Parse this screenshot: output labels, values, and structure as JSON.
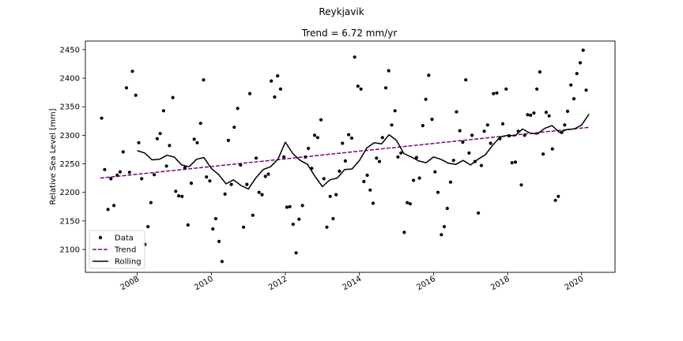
{
  "chart_data": {
    "type": "scatter",
    "title": "Reykjavik",
    "subtitle": "Trend = 6.72 mm/yr",
    "xlabel": "",
    "ylabel": "Relative Sea Level [mm]",
    "xlim": [
      2006.6,
      2020.9
    ],
    "ylim": [
      2060,
      2465
    ],
    "x_ticks": [
      "2008",
      "2010",
      "2012",
      "2014",
      "2016",
      "2018",
      "2020"
    ],
    "y_ticks": [
      "2100",
      "2150",
      "2200",
      "2250",
      "2300",
      "2350",
      "2400",
      "2450"
    ],
    "grid": false,
    "legend_position": "lower-left",
    "colors": {
      "data": "#000000",
      "trend": "#800080",
      "rolling": "#000000"
    },
    "series": [
      {
        "name": "Data",
        "style": "points",
        "points": [
          [
            2007.04,
            2330
          ],
          [
            2007.12,
            2240
          ],
          [
            2007.21,
            2170
          ],
          [
            2007.29,
            2224
          ],
          [
            2007.37,
            2177
          ],
          [
            2007.46,
            2230
          ],
          [
            2007.54,
            2236
          ],
          [
            2007.62,
            2271
          ],
          [
            2007.71,
            2383
          ],
          [
            2007.79,
            2235
          ],
          [
            2007.87,
            2412
          ],
          [
            2007.96,
            2370
          ],
          [
            2008.04,
            2287
          ],
          [
            2008.12,
            2224
          ],
          [
            2008.21,
            2109
          ],
          [
            2008.29,
            2140
          ],
          [
            2008.37,
            2182
          ],
          [
            2008.46,
            2231
          ],
          [
            2008.54,
            2294
          ],
          [
            2008.62,
            2303
          ],
          [
            2008.71,
            2343
          ],
          [
            2008.79,
            2246
          ],
          [
            2008.87,
            2282
          ],
          [
            2008.96,
            2366
          ],
          [
            2009.04,
            2202
          ],
          [
            2009.12,
            2194
          ],
          [
            2009.21,
            2193
          ],
          [
            2009.29,
            2243
          ],
          [
            2009.37,
            2143
          ],
          [
            2009.46,
            2216
          ],
          [
            2009.54,
            2293
          ],
          [
            2009.62,
            2287
          ],
          [
            2009.71,
            2321
          ],
          [
            2009.79,
            2397
          ],
          [
            2009.87,
            2227
          ],
          [
            2009.96,
            2220
          ],
          [
            2010.04,
            2136
          ],
          [
            2010.12,
            2154
          ],
          [
            2010.21,
            2114
          ],
          [
            2010.29,
            2079
          ],
          [
            2010.37,
            2197
          ],
          [
            2010.46,
            2291
          ],
          [
            2010.54,
            2214
          ],
          [
            2010.62,
            2314
          ],
          [
            2010.71,
            2347
          ],
          [
            2010.79,
            2248
          ],
          [
            2010.87,
            2139
          ],
          [
            2010.96,
            2214
          ],
          [
            2011.04,
            2373
          ],
          [
            2011.12,
            2160
          ],
          [
            2011.21,
            2260
          ],
          [
            2011.29,
            2200
          ],
          [
            2011.37,
            2196
          ],
          [
            2011.46,
            2228
          ],
          [
            2011.54,
            2232
          ],
          [
            2011.62,
            2395
          ],
          [
            2011.71,
            2367
          ],
          [
            2011.79,
            2404
          ],
          [
            2011.87,
            2381
          ],
          [
            2011.96,
            2262
          ],
          [
            2012.04,
            2174
          ],
          [
            2012.12,
            2175
          ],
          [
            2012.21,
            2144
          ],
          [
            2012.29,
            2094
          ],
          [
            2012.37,
            2153
          ],
          [
            2012.46,
            2177
          ],
          [
            2012.54,
            2262
          ],
          [
            2012.62,
            2277
          ],
          [
            2012.71,
            2242
          ],
          [
            2012.79,
            2300
          ],
          [
            2012.87,
            2296
          ],
          [
            2012.96,
            2327
          ],
          [
            2013.04,
            2224
          ],
          [
            2013.12,
            2139
          ],
          [
            2013.21,
            2193
          ],
          [
            2013.29,
            2154
          ],
          [
            2013.37,
            2196
          ],
          [
            2013.46,
            2237
          ],
          [
            2013.54,
            2286
          ],
          [
            2013.62,
            2255
          ],
          [
            2013.71,
            2301
          ],
          [
            2013.79,
            2295
          ],
          [
            2013.87,
            2437
          ],
          [
            2013.96,
            2386
          ],
          [
            2014.04,
            2381
          ],
          [
            2014.12,
            2219
          ],
          [
            2014.21,
            2230
          ],
          [
            2014.29,
            2204
          ],
          [
            2014.37,
            2181
          ],
          [
            2014.46,
            2260
          ],
          [
            2014.54,
            2254
          ],
          [
            2014.62,
            2296
          ],
          [
            2014.71,
            2383
          ],
          [
            2014.79,
            2413
          ],
          [
            2014.87,
            2318
          ],
          [
            2014.96,
            2343
          ],
          [
            2015.04,
            2262
          ],
          [
            2015.12,
            2269
          ],
          [
            2015.21,
            2130
          ],
          [
            2015.29,
            2182
          ],
          [
            2015.37,
            2180
          ],
          [
            2015.46,
            2221
          ],
          [
            2015.54,
            2261
          ],
          [
            2015.62,
            2225
          ],
          [
            2015.71,
            2317
          ],
          [
            2015.79,
            2363
          ],
          [
            2015.87,
            2405
          ],
          [
            2015.96,
            2328
          ],
          [
            2016.04,
            2236
          ],
          [
            2016.12,
            2200
          ],
          [
            2016.21,
            2126
          ],
          [
            2016.29,
            2140
          ],
          [
            2016.37,
            2172
          ],
          [
            2016.46,
            2218
          ],
          [
            2016.54,
            2256
          ],
          [
            2016.62,
            2341
          ],
          [
            2016.71,
            2308
          ],
          [
            2016.79,
            2288
          ],
          [
            2016.87,
            2397
          ],
          [
            2016.96,
            2269
          ],
          [
            2017.04,
            2300
          ],
          [
            2017.12,
            2254
          ],
          [
            2017.21,
            2164
          ],
          [
            2017.29,
            2247
          ],
          [
            2017.37,
            2307
          ],
          [
            2017.46,
            2318
          ],
          [
            2017.54,
            2286
          ],
          [
            2017.62,
            2373
          ],
          [
            2017.71,
            2374
          ],
          [
            2017.79,
            2294
          ],
          [
            2017.87,
            2320
          ],
          [
            2017.96,
            2381
          ],
          [
            2018.04,
            2299
          ],
          [
            2018.12,
            2252
          ],
          [
            2018.21,
            2253
          ],
          [
            2018.29,
            2307
          ],
          [
            2018.37,
            2213
          ],
          [
            2018.46,
            2300
          ],
          [
            2018.54,
            2336
          ],
          [
            2018.62,
            2335
          ],
          [
            2018.71,
            2339
          ],
          [
            2018.79,
            2381
          ],
          [
            2018.87,
            2411
          ],
          [
            2018.96,
            2267
          ],
          [
            2019.04,
            2340
          ],
          [
            2019.12,
            2334
          ],
          [
            2019.21,
            2276
          ],
          [
            2019.29,
            2186
          ],
          [
            2019.37,
            2193
          ],
          [
            2019.46,
            2305
          ],
          [
            2019.54,
            2318
          ],
          [
            2019.62,
            2342
          ],
          [
            2019.71,
            2388
          ],
          [
            2019.79,
            2364
          ],
          [
            2019.87,
            2408
          ],
          [
            2019.96,
            2427
          ],
          [
            2020.04,
            2449
          ],
          [
            2020.12,
            2379
          ]
        ]
      },
      {
        "name": "Trend",
        "style": "dashed",
        "points": [
          [
            2007.0,
            2225
          ],
          [
            2020.2,
            2314
          ]
        ]
      },
      {
        "name": "Rolling",
        "style": "line",
        "points": [
          [
            2008.0,
            2273
          ],
          [
            2008.2,
            2269
          ],
          [
            2008.4,
            2257
          ],
          [
            2008.6,
            2258
          ],
          [
            2008.8,
            2265
          ],
          [
            2009.0,
            2262
          ],
          [
            2009.2,
            2248
          ],
          [
            2009.4,
            2245
          ],
          [
            2009.6,
            2258
          ],
          [
            2009.8,
            2261
          ],
          [
            2010.0,
            2242
          ],
          [
            2010.2,
            2231
          ],
          [
            2010.4,
            2215
          ],
          [
            2010.6,
            2222
          ],
          [
            2010.8,
            2212
          ],
          [
            2011.0,
            2206
          ],
          [
            2011.2,
            2225
          ],
          [
            2011.4,
            2240
          ],
          [
            2011.6,
            2245
          ],
          [
            2011.8,
            2258
          ],
          [
            2012.0,
            2288
          ],
          [
            2012.2,
            2268
          ],
          [
            2012.4,
            2256
          ],
          [
            2012.6,
            2249
          ],
          [
            2012.8,
            2228
          ],
          [
            2013.0,
            2210
          ],
          [
            2013.2,
            2222
          ],
          [
            2013.4,
            2225
          ],
          [
            2013.6,
            2240
          ],
          [
            2013.8,
            2241
          ],
          [
            2014.0,
            2256
          ],
          [
            2014.2,
            2278
          ],
          [
            2014.4,
            2287
          ],
          [
            2014.6,
            2285
          ],
          [
            2014.8,
            2301
          ],
          [
            2015.0,
            2291
          ],
          [
            2015.2,
            2268
          ],
          [
            2015.4,
            2262
          ],
          [
            2015.6,
            2255
          ],
          [
            2015.8,
            2252
          ],
          [
            2016.0,
            2262
          ],
          [
            2016.2,
            2258
          ],
          [
            2016.4,
            2251
          ],
          [
            2016.6,
            2249
          ],
          [
            2016.8,
            2256
          ],
          [
            2017.0,
            2248
          ],
          [
            2017.2,
            2258
          ],
          [
            2017.4,
            2266
          ],
          [
            2017.6,
            2283
          ],
          [
            2017.8,
            2297
          ],
          [
            2018.0,
            2300
          ],
          [
            2018.2,
            2299
          ],
          [
            2018.4,
            2311
          ],
          [
            2018.6,
            2304
          ],
          [
            2018.8,
            2302
          ],
          [
            2019.0,
            2312
          ],
          [
            2019.2,
            2317
          ],
          [
            2019.4,
            2305
          ],
          [
            2019.6,
            2310
          ],
          [
            2019.8,
            2311
          ],
          [
            2020.0,
            2318
          ],
          [
            2020.2,
            2337
          ]
        ]
      }
    ]
  }
}
